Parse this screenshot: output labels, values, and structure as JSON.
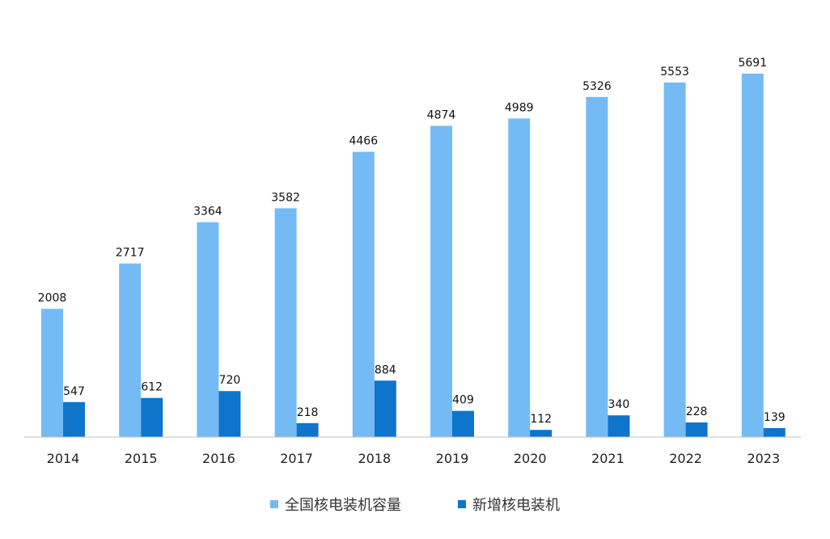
{
  "chart_data": {
    "type": "bar",
    "categories": [
      "2014",
      "2015",
      "2016",
      "2017",
      "2018",
      "2019",
      "2020",
      "2021",
      "2022",
      "2023"
    ],
    "series": [
      {
        "name": "全国核电装机容量",
        "values": [
          2008,
          2717,
          3364,
          3582,
          4466,
          4874,
          4989,
          5326,
          5553,
          5691
        ],
        "color": "#74bbf5"
      },
      {
        "name": "新增核电装机",
        "values": [
          547,
          612,
          720,
          218,
          884,
          409,
          112,
          340,
          228,
          139
        ],
        "color": "#0f74cc"
      }
    ],
    "ylim": [
      0,
      5691
    ],
    "legend": "bottom",
    "grid": false
  }
}
